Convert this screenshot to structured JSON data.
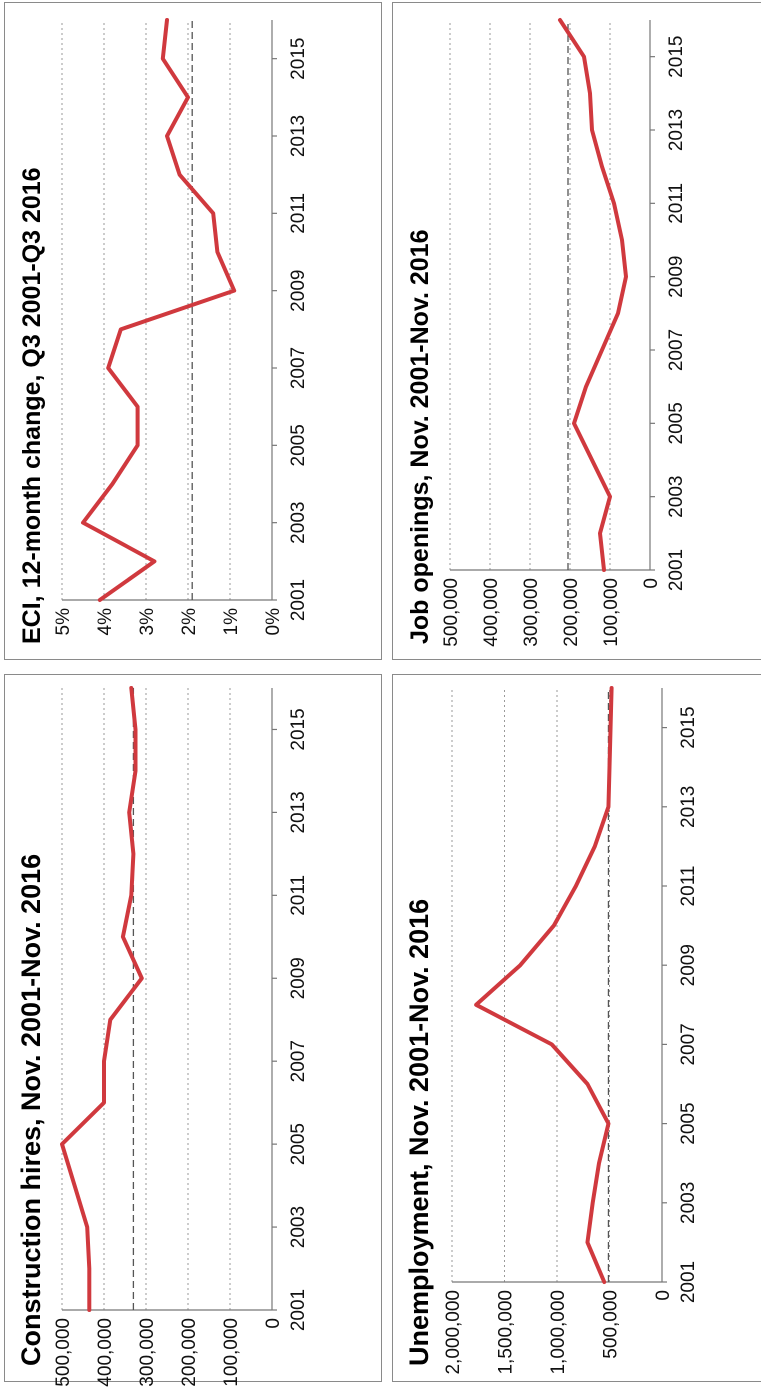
{
  "palette": {
    "series": "#d0393e"
  },
  "chart_data": [
    {
      "type": "line",
      "title": "Construction hires, Nov. 2001-Nov. 2016",
      "x_tick_labels": [
        "2001",
        "2003",
        "2005",
        "2007",
        "2009",
        "2011",
        "2013",
        "2015"
      ],
      "y_tick_labels": [
        "0",
        "100,000",
        "200,000",
        "300,000",
        "400,000",
        "500,000"
      ],
      "ylim": [
        0,
        500000
      ],
      "xlim": [
        2001,
        2016
      ],
      "reference_line": 330000,
      "grid": true,
      "x": [
        2001,
        2002,
        2003,
        2004,
        2005,
        2006,
        2007,
        2008,
        2009,
        2010,
        2011,
        2012,
        2013,
        2014,
        2015,
        2016
      ],
      "values": [
        435000,
        435000,
        440000,
        470000,
        500000,
        400000,
        400000,
        385000,
        310000,
        355000,
        335000,
        330000,
        340000,
        325000,
        325000,
        335000
      ]
    },
    {
      "type": "line",
      "title": "Job openings, Nov. 2001-Nov. 2016",
      "x_tick_labels": [
        "2001",
        "2003",
        "2005",
        "2007",
        "2009",
        "2011",
        "2013",
        "2015"
      ],
      "y_tick_labels": [
        "0",
        "100,000",
        "200,000",
        "300,000",
        "400,000",
        "500,000"
      ],
      "ylim": [
        0,
        500000
      ],
      "xlim": [
        2001,
        2016
      ],
      "reference_line": 205000,
      "grid": true,
      "x": [
        2001,
        2002,
        2003,
        2004,
        2005,
        2006,
        2007,
        2008,
        2009,
        2010,
        2011,
        2012,
        2013,
        2014,
        2015,
        2016
      ],
      "values": [
        115000,
        125000,
        100000,
        145000,
        190000,
        160000,
        120000,
        80000,
        60000,
        70000,
        90000,
        120000,
        145000,
        150000,
        165000,
        225000
      ]
    },
    {
      "type": "line",
      "title": "Unemployment, Nov. 2001-Nov. 2016",
      "x_tick_labels": [
        "2001",
        "2003",
        "2005",
        "2007",
        "2009",
        "2011",
        "2013",
        "2015"
      ],
      "y_tick_labels": [
        "0",
        "500,000",
        "1,000,000",
        "1,500,000",
        "2,000,000"
      ],
      "ylim": [
        0,
        2000000
      ],
      "xlim": [
        2001,
        2016
      ],
      "reference_line": 510000,
      "grid": true,
      "x": [
        2001,
        2002,
        2003,
        2004,
        2005,
        2006,
        2007,
        2008,
        2009,
        2010,
        2011,
        2012,
        2013,
        2014,
        2015,
        2016
      ],
      "values": [
        550000,
        710000,
        660000,
        600000,
        510000,
        710000,
        1050000,
        1770000,
        1350000,
        1030000,
        820000,
        640000,
        510000,
        500000,
        490000,
        480000
      ]
    },
    {
      "type": "line",
      "title": "ECI, 12-month change, Q3 2001-Q3 2016",
      "x_tick_labels": [
        "2001",
        "2003",
        "2005",
        "2007",
        "2009",
        "2011",
        "2013",
        "2015"
      ],
      "y_tick_labels": [
        "0%",
        "1%",
        "2%",
        "3%",
        "4%",
        "5%"
      ],
      "ylim": [
        0,
        5
      ],
      "xlim": [
        2001,
        2016
      ],
      "reference_line": 1.9,
      "grid": true,
      "x": [
        2001,
        2002,
        2003,
        2004,
        2005,
        2006,
        2007,
        2008,
        2009,
        2010,
        2011,
        2012,
        2013,
        2014,
        2015,
        2016
      ],
      "values": [
        4.1,
        2.8,
        4.5,
        3.8,
        3.2,
        3.2,
        3.9,
        3.6,
        0.9,
        1.3,
        1.4,
        2.2,
        2.5,
        2.0,
        2.6,
        2.5
      ]
    }
  ]
}
